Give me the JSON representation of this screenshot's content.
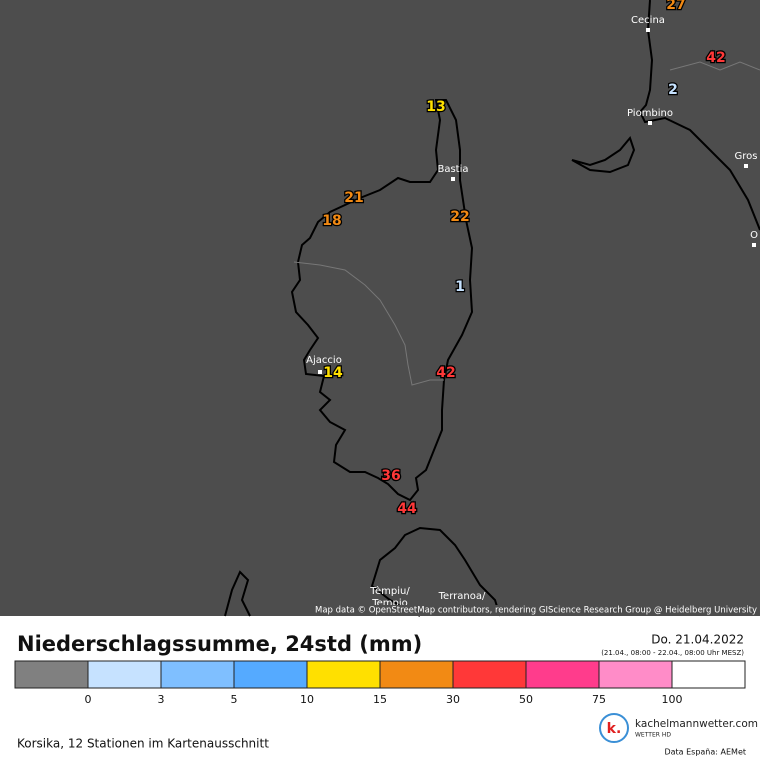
{
  "map": {
    "stations": [
      27,
      42,
      2,
      13,
      21,
      18,
      22,
      1,
      14,
      42,
      36,
      44
    ],
    "places": [
      "Cecina",
      "Piombino",
      "Bastia",
      "Ajaccio",
      "Gros",
      "O",
      "Tèmpiu/",
      "Tempio",
      "Terranoa/"
    ],
    "attribution": "Map data © OpenStreetMap contributors, rendering GIScience Research Group @ Heidelberg University"
  },
  "legend": {
    "title": "Niederschlagssumme, 24std (mm)",
    "date": "Do. 21.04.2022",
    "period": "(21.04., 08:00 - 22.04., 08:00 Uhr MESZ)",
    "colors": [
      "#808080",
      "#c6e2ff",
      "#7fbfff",
      "#55aaff",
      "#ffe000",
      "#f28a14",
      "#ff3838",
      "#ff3c8c",
      "#ff8cc8",
      "#ffffff"
    ],
    "ticks": [
      0,
      3,
      5,
      10,
      15,
      30,
      50,
      75,
      100
    ]
  },
  "footer": {
    "note": "Korsika, 12 Stationen im Kartenausschnitt",
    "brand": "kachelmannwetter.com",
    "brand_sub": "WETTER HD",
    "credit": "Data España: AEMet"
  }
}
